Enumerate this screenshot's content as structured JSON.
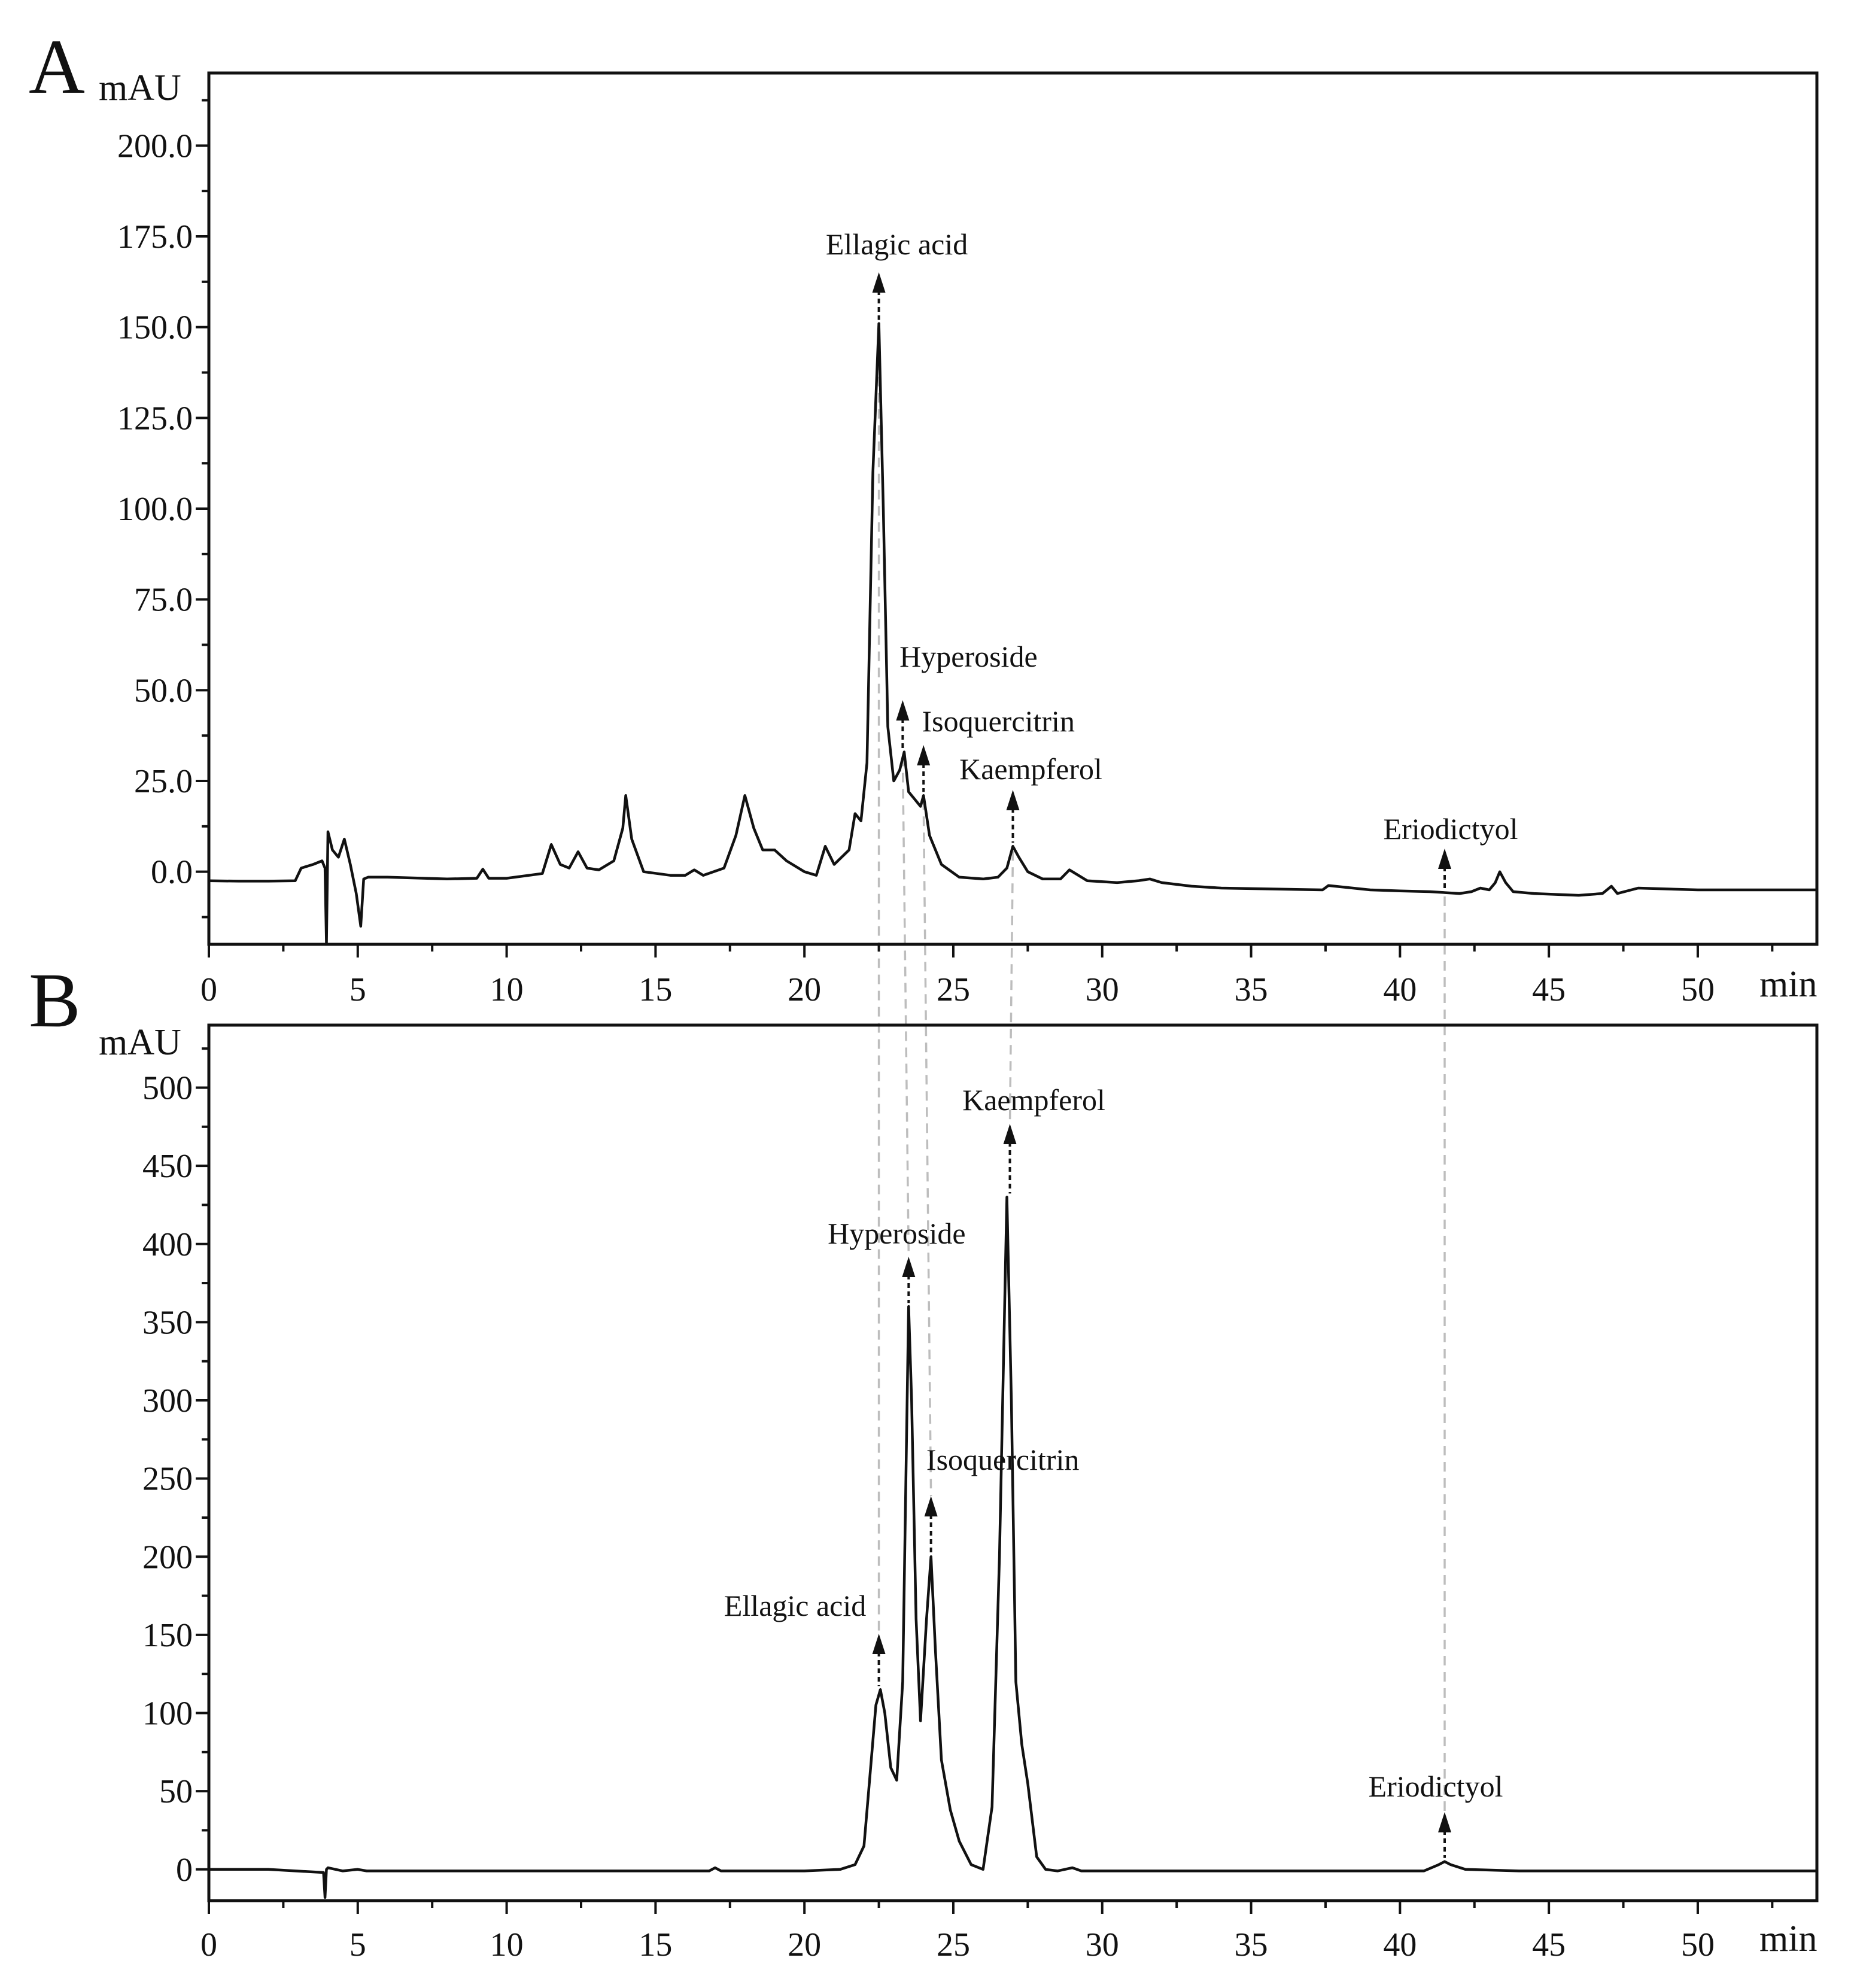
{
  "chart_data": [
    {
      "panel": "A",
      "type": "line",
      "title": "",
      "xlabel": "min",
      "ylabel": "mAU",
      "xlim": [
        0,
        54
      ],
      "ylim": [
        -20,
        220
      ],
      "xticks": [
        0,
        5,
        10,
        15,
        20,
        25,
        30,
        35,
        40,
        45,
        50
      ],
      "xtick_labels": [
        "0",
        "5",
        "10",
        "15",
        "20",
        "25",
        "30",
        "35",
        "40",
        "45",
        "50"
      ],
      "yticks": [
        0,
        25,
        50,
        75,
        100,
        125,
        150,
        175,
        200
      ],
      "ytick_labels": [
        "0.0",
        "25.0",
        "50.0",
        "75.0",
        "100.0",
        "125.0",
        "150.0",
        "175.0",
        "200.0"
      ],
      "series": [
        {
          "x": [
            0,
            1,
            2,
            2.9,
            3.1,
            3.5,
            3.8,
            3.9,
            3.95,
            4.0,
            4.15,
            4.35,
            4.55,
            4.75,
            4.95,
            5.1,
            5.2,
            5.35,
            5.6,
            6,
            8,
            9.0,
            9.2,
            9.4,
            10,
            11.2,
            11.5,
            11.8,
            12.1,
            12.4,
            12.7,
            13.1,
            13.6,
            13.9,
            14.0,
            14.2,
            14.6,
            15.5,
            16.0,
            16.3,
            16.6,
            17.3,
            17.7,
            18.0,
            18.3,
            18.6,
            19.0,
            19.4,
            20.0,
            20.4,
            20.7,
            21.0,
            21.5,
            21.7,
            21.9,
            22.1,
            22.3,
            22.5,
            22.65,
            22.8,
            23.0,
            23.2,
            23.35,
            23.5,
            23.7,
            23.9,
            24.0,
            24.2,
            24.6,
            25.2,
            26.0,
            26.5,
            26.8,
            27.0,
            27.2,
            27.5,
            28.0,
            28.6,
            28.9,
            29.5,
            30.5,
            31.2,
            31.6,
            32.0,
            33.0,
            34.0,
            37.4,
            37.6,
            39.0,
            40.0,
            41.0,
            42.0,
            42.4,
            42.7,
            43.0,
            43.2,
            43.35,
            43.55,
            43.8,
            44.5,
            46.0,
            46.8,
            47.1,
            47.3,
            48.0,
            50.0,
            52.0,
            54.0
          ],
          "y": [
            -2.5,
            -2.6,
            -2.6,
            -2.5,
            1,
            2,
            3,
            1,
            -20,
            11,
            6,
            4,
            9,
            2,
            -6,
            -15,
            -2,
            -1.5,
            -1.5,
            -1.5,
            -2,
            -1.8,
            0.7,
            -1.8,
            -1.8,
            -0.5,
            7.5,
            2,
            1,
            5.5,
            1,
            0.5,
            3,
            12,
            21,
            9,
            0,
            -1,
            -1,
            0.5,
            -1,
            1,
            10,
            21,
            12,
            6,
            6,
            3,
            0,
            -1,
            7,
            2,
            6,
            16,
            14,
            30,
            110,
            151,
            100,
            40,
            25,
            28,
            33,
            22,
            20,
            18,
            21,
            10,
            2,
            -1.5,
            -2,
            -1.5,
            1,
            7,
            4,
            0,
            -2,
            -2,
            0.5,
            -2.5,
            -3,
            -2.5,
            -2,
            -3,
            -4,
            -4.5,
            -5,
            -3.8,
            -5,
            -5.3,
            -5.5,
            -6,
            -5.5,
            -4.5,
            -5,
            -3,
            0,
            -3,
            -5.5,
            -6,
            -6.5,
            -6,
            -4,
            -6,
            -4.5,
            -5,
            -5,
            -5
          ],
          "peaks": [
            {
              "label": "Ellagic acid",
              "x": 22.5,
              "y": 151
            },
            {
              "label": "Hyperoside",
              "x": 23.3,
              "y": 33
            },
            {
              "label": "Isoquercitrin",
              "x": 24.0,
              "y": 21
            },
            {
              "label": "Kaempferol",
              "x": 27.0,
              "y": 7
            },
            {
              "label": "Eriodictyol",
              "x": 41.5,
              "y": -5.5
            }
          ]
        }
      ]
    },
    {
      "panel": "B",
      "type": "line",
      "title": "",
      "xlabel": "min",
      "ylabel": "mAU",
      "xlim": [
        0,
        54
      ],
      "ylim": [
        -20,
        540
      ],
      "xticks": [
        0,
        5,
        10,
        15,
        20,
        25,
        30,
        35,
        40,
        45,
        50
      ],
      "xtick_labels": [
        "0",
        "5",
        "10",
        "15",
        "20",
        "25",
        "30",
        "35",
        "40",
        "45",
        "50"
      ],
      "yticks": [
        0,
        50,
        100,
        150,
        200,
        250,
        300,
        350,
        400,
        450,
        500
      ],
      "ytick_labels": [
        "0",
        "50",
        "100",
        "150",
        "200",
        "250",
        "300",
        "350",
        "400",
        "450",
        "500"
      ],
      "series": [
        {
          "x": [
            0,
            2,
            3.85,
            3.9,
            3.95,
            4.0,
            4.5,
            5.0,
            5.3,
            6,
            10,
            16.8,
            17.0,
            17.2,
            20,
            21.2,
            21.7,
            22.0,
            22.2,
            22.4,
            22.55,
            22.7,
            22.9,
            23.1,
            23.3,
            23.5,
            23.6,
            23.75,
            23.9,
            24.1,
            24.25,
            24.4,
            24.6,
            24.9,
            25.2,
            25.6,
            26.0,
            26.3,
            26.55,
            26.8,
            26.95,
            27.1,
            27.3,
            27.5,
            27.8,
            28.1,
            28.5,
            29.0,
            29.3,
            30,
            35,
            40,
            40.8,
            41.3,
            41.5,
            41.7,
            42.2,
            44,
            46,
            50,
            54
          ],
          "y": [
            0,
            0,
            -2,
            -18,
            0,
            1,
            -1,
            0,
            -1,
            -1,
            -1,
            -1,
            1,
            -1,
            -1,
            0,
            3,
            15,
            60,
            105,
            115,
            100,
            65,
            57,
            120,
            360,
            300,
            160,
            95,
            160,
            200,
            140,
            70,
            38,
            18,
            3,
            0,
            40,
            200,
            430,
            300,
            120,
            80,
            55,
            8,
            0,
            -1,
            1,
            -1,
            -1,
            -1,
            -1,
            -1,
            3,
            5,
            3,
            0,
            -1,
            -1,
            -1,
            -1
          ],
          "peaks": [
            {
              "label": "Ellagic acid",
              "x": 22.5,
              "y": 115
            },
            {
              "label": "Hyperoside",
              "x": 23.5,
              "y": 360
            },
            {
              "label": "Isoquercitrin",
              "x": 24.25,
              "y": 200
            },
            {
              "label": "Kaempferol",
              "x": 26.9,
              "y": 430
            },
            {
              "label": "Eriodictyol",
              "x": 41.5,
              "y": 5
            }
          ]
        }
      ]
    }
  ]
}
